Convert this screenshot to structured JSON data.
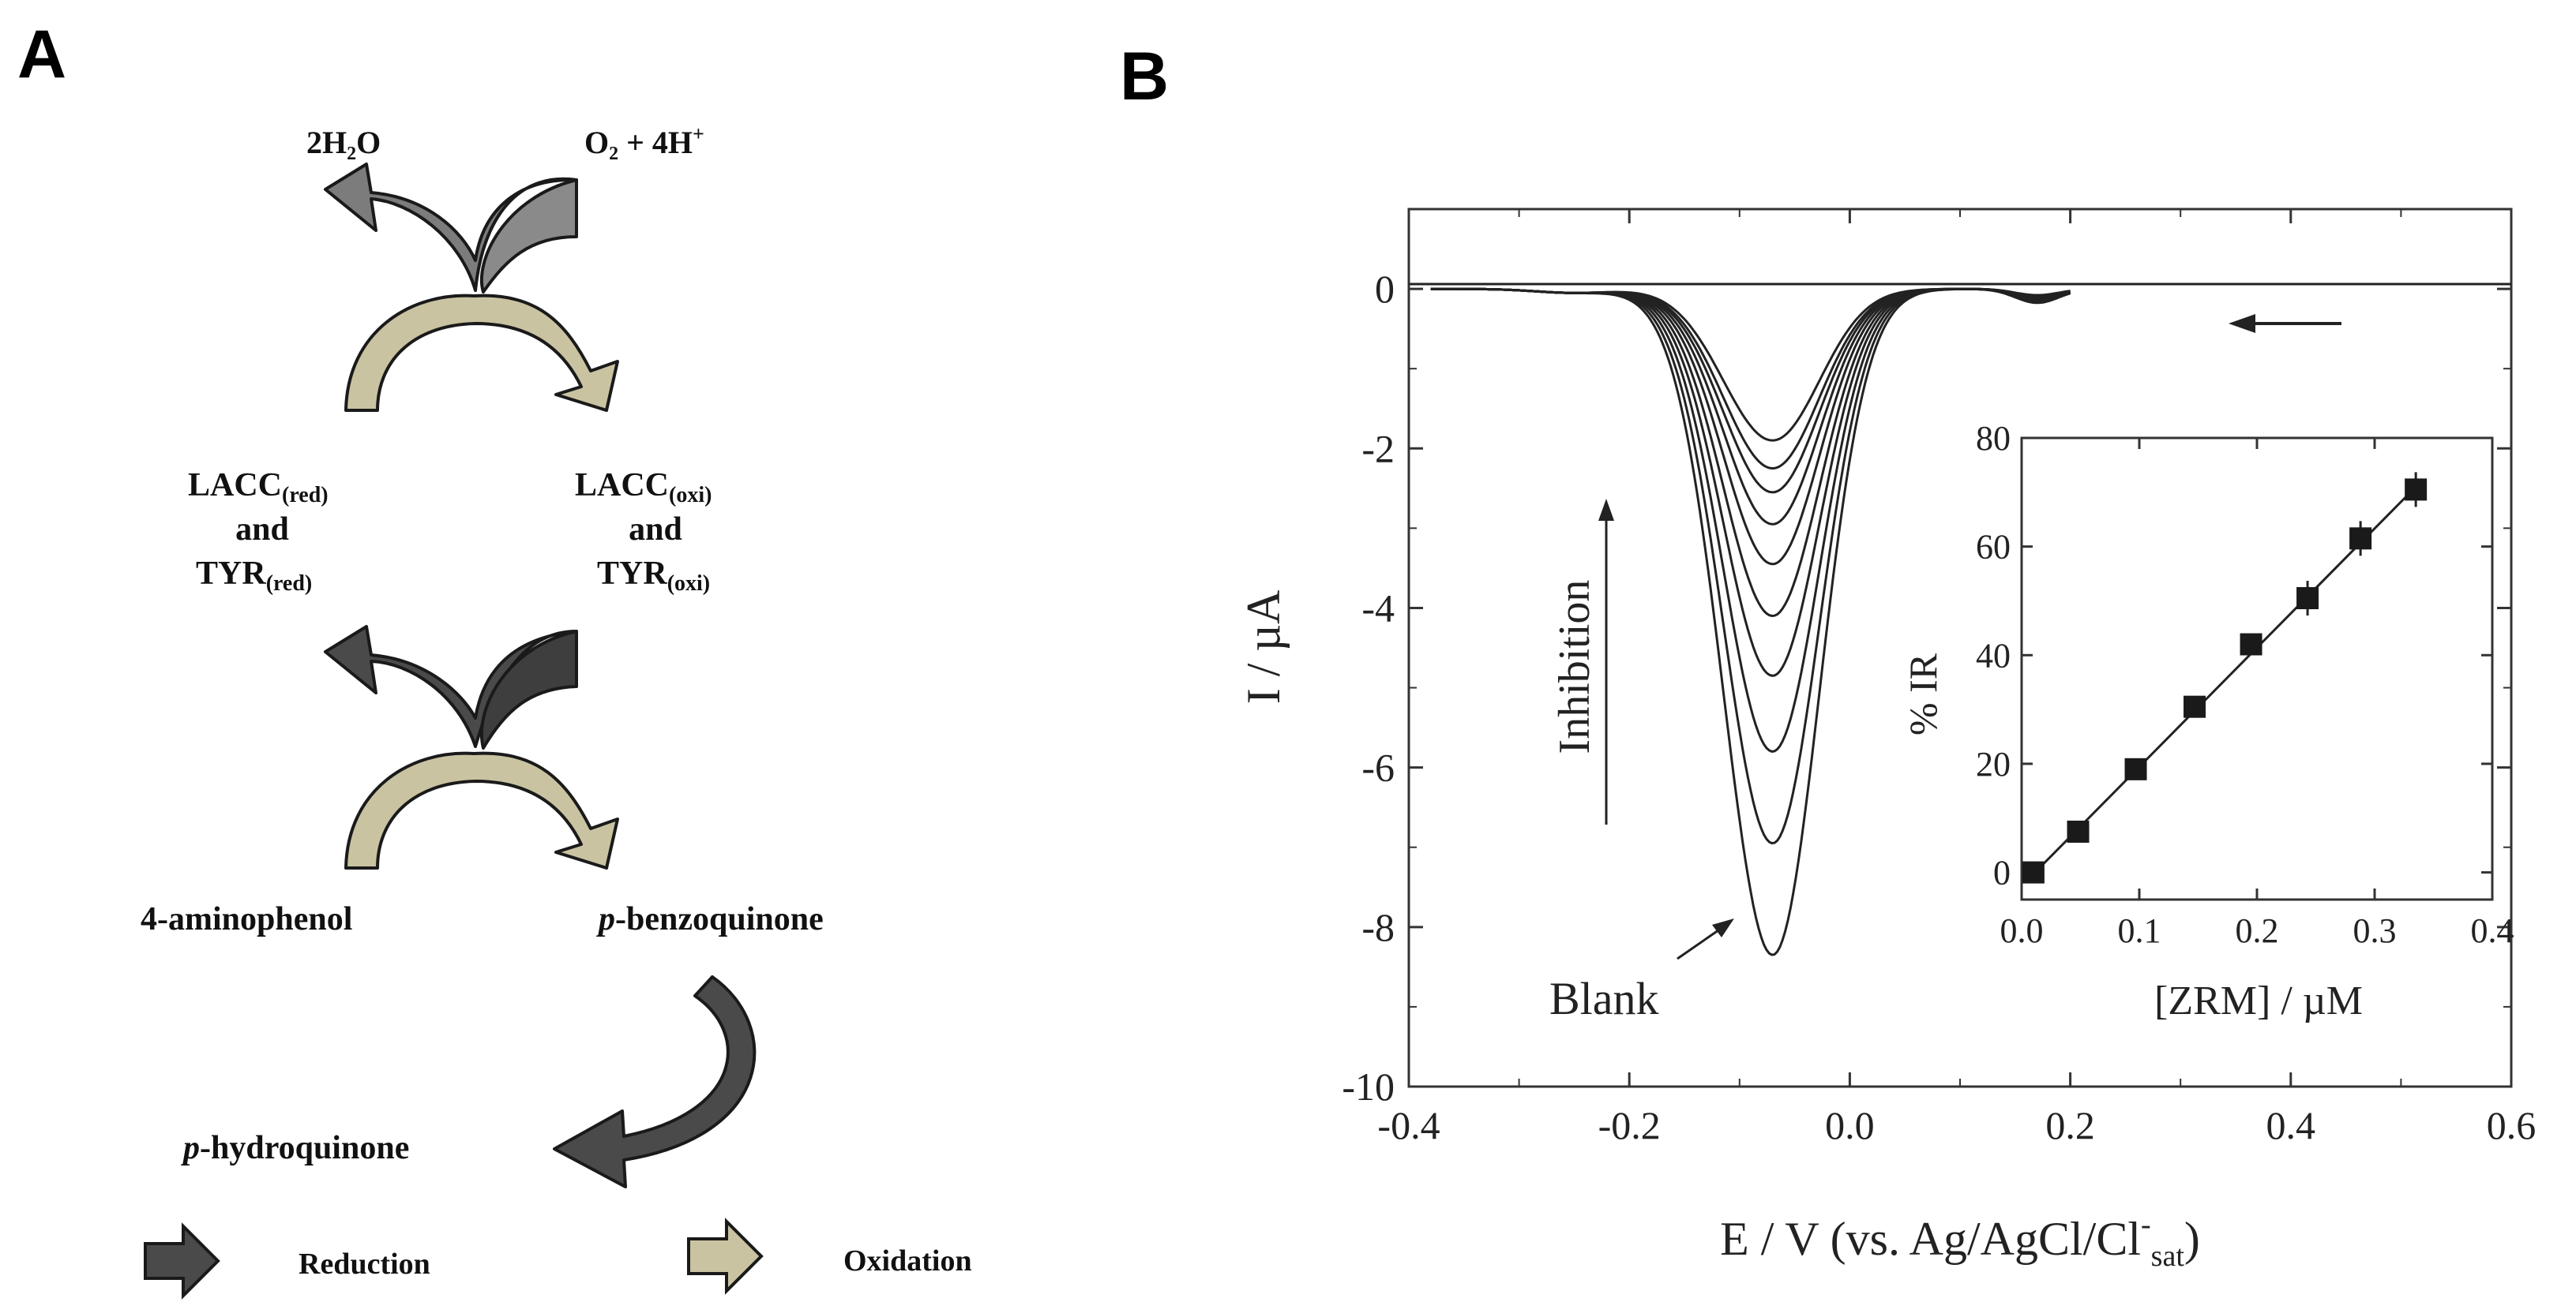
{
  "panel_a": {
    "letter": "A",
    "top_left": "2H₂O",
    "top_right_main": "O₂ + 4H",
    "top_right_sup": "+",
    "left_enzyme": {
      "line1": "LACC",
      "line1_sub": "(red)",
      "line2": "and",
      "line3": "TYR",
      "line3_sub": "(red)"
    },
    "right_enzyme": {
      "line1": "LACC",
      "line1_sub": "(oxi)",
      "line2": "and",
      "line3": "TYR",
      "line3_sub": "(oxi)"
    },
    "substrate": "4-aminophenol",
    "product_italic": "p",
    "product_rest": "-benzoquinone",
    "reduced_italic": "p",
    "reduced_rest": "-hydroquinone",
    "legend": [
      {
        "label": "Reduction",
        "color": "#4a4a4a",
        "icon": "dark-arrow-icon"
      },
      {
        "label": "Oxidation",
        "color": "#c9c3a2",
        "icon": "light-arrow-icon"
      }
    ],
    "colors": {
      "dark": "#4a4a4a",
      "medium": "#7c7c7c",
      "light": "#c9c3a2",
      "outline": "#1a1a1a"
    }
  },
  "panel_b": {
    "letter": "B",
    "chart_data": [
      {
        "type": "line",
        "title": "",
        "xlabel_main": "E / V (vs. Ag/AgCl/Cl",
        "xlabel_sup": "-",
        "xlabel_sub": "sat",
        "xlabel_close": ")",
        "ylabel": "I / µA",
        "xlim": [
          -0.4,
          0.6
        ],
        "ylim": [
          -10,
          1
        ],
        "xticks": [
          -0.4,
          -0.2,
          0.0,
          0.2,
          0.4,
          0.6
        ],
        "xtick_labels": [
          "-0.4",
          "-0.2",
          "0.0",
          "0.2",
          "0.4",
          "0.6"
        ],
        "yticks": [
          0,
          -2,
          -4,
          -6,
          -8,
          -10
        ],
        "ytick_labels": [
          "0",
          "-2",
          "-4",
          "-6",
          "-8",
          "-10"
        ],
        "peak_potential": -0.07,
        "series_peaks": [
          -8.35,
          -6.95,
          -5.8,
          -4.85,
          -4.1,
          -3.45,
          -2.95,
          -2.55,
          -2.25,
          -1.9
        ],
        "annotations": {
          "inhibition": "Inhibition",
          "blank": "Blank"
        },
        "scan_direction": "negative"
      },
      {
        "type": "scatter",
        "title": "",
        "xlabel": "[ZRM] / µM",
        "ylabel": "% IR",
        "xlim": [
          0,
          0.4
        ],
        "ylim": [
          -5,
          80
        ],
        "xticks": [
          0.0,
          0.1,
          0.2,
          0.3,
          0.4
        ],
        "xtick_labels": [
          "0.0",
          "0.1",
          "0.2",
          "0.3",
          "0.4"
        ],
        "yticks": [
          0,
          20,
          40,
          60,
          80
        ],
        "ytick_labels": [
          "0",
          "20",
          "40",
          "60",
          "80"
        ],
        "x": [
          0.01,
          0.048,
          0.097,
          0.147,
          0.195,
          0.243,
          0.288,
          0.335
        ],
        "y": [
          0,
          7.5,
          19,
          30.5,
          42,
          50.5,
          61.5,
          70.5
        ],
        "fit": {
          "x0": 0.01,
          "y0": -0.3,
          "x1": 0.335,
          "y1": 71
        }
      }
    ]
  }
}
